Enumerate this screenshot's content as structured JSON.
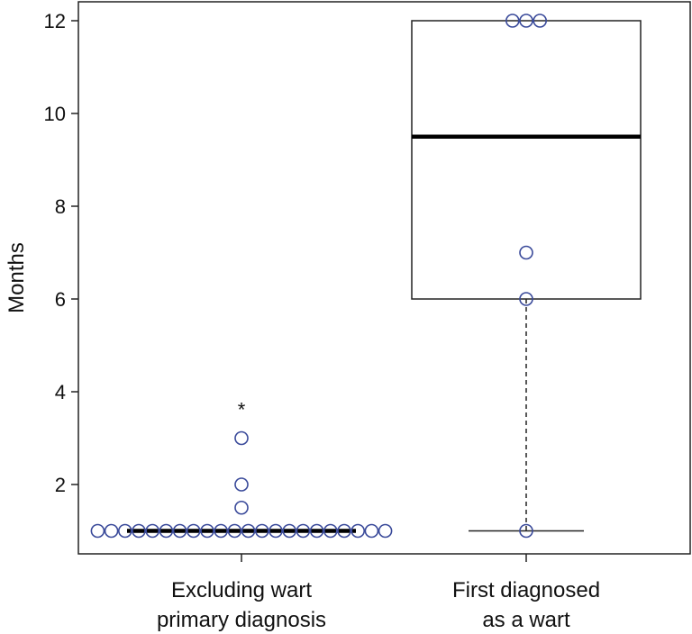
{
  "chart_data": {
    "type": "box",
    "ylabel": "Months",
    "ylim": [
      0,
      12.3
    ],
    "yticks": [
      2,
      4,
      6,
      8,
      10,
      12
    ],
    "grid": false,
    "legend": "none",
    "point_color": "#3a4a9a",
    "groups": [
      {
        "label_lines": [
          "Excluding wart",
          "primary diagnosis"
        ],
        "box": {
          "q1": 1,
          "median": 1,
          "q3": 1,
          "whisker_low": 1,
          "whisker_high": 1
        },
        "points": [
          1,
          1,
          1,
          1,
          1,
          1,
          1,
          1,
          1,
          1,
          1,
          1,
          1,
          1,
          1,
          1,
          1,
          1,
          1,
          1,
          1,
          1,
          1.5,
          2,
          3
        ],
        "annotation": {
          "text": "*",
          "y": 3.7
        }
      },
      {
        "label_lines": [
          "First diagnosed",
          "as a wart"
        ],
        "box": {
          "q1": 6,
          "median": 9.5,
          "q3": 12,
          "whisker_low": 1,
          "whisker_high": 12
        },
        "points": [
          1,
          6,
          7,
          12,
          12,
          12
        ]
      }
    ]
  }
}
